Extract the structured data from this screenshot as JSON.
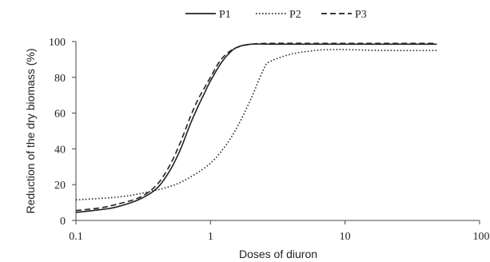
{
  "chart_data": {
    "type": "line",
    "title": "",
    "xlabel": "Doses of diuron",
    "ylabel": "Reduction of the dry biomass (%)",
    "xscale": "log",
    "xlim": [
      0.1,
      100
    ],
    "ylim": [
      0,
      100
    ],
    "x_ticks": [
      0.1,
      1,
      10,
      100
    ],
    "x_tick_labels": [
      "0.1",
      "1",
      "10",
      "100"
    ],
    "y_ticks": [
      0,
      20,
      40,
      60,
      80,
      100
    ],
    "y_tick_labels": [
      "0",
      "20",
      "40",
      "60",
      "80",
      "100"
    ],
    "grid": false,
    "legend_position": "top",
    "series": [
      {
        "name": "P1",
        "style": "solid",
        "color": "#222222",
        "x": [
          0.1,
          0.15,
          0.2,
          0.3,
          0.4,
          0.5,
          0.6,
          0.7,
          0.8,
          0.9,
          1.0,
          1.2,
          1.4,
          1.6,
          2.0,
          3.0,
          5.0,
          10,
          20,
          48
        ],
        "y": [
          4.5,
          6,
          7.5,
          12,
          18,
          28,
          40,
          53,
          63,
          71,
          78,
          88,
          94,
          97,
          98.5,
          98.5,
          98.5,
          98.5,
          98.5,
          98.5
        ]
      },
      {
        "name": "P2",
        "style": "dotted",
        "color": "#222222",
        "x": [
          0.1,
          0.2,
          0.3,
          0.5,
          0.7,
          1.0,
          1.3,
          1.6,
          2.0,
          2.5,
          2.8,
          4.0,
          6.0,
          8.0,
          10,
          20,
          48
        ],
        "y": [
          11.5,
          13,
          15,
          19,
          24,
          32,
          42,
          53,
          68,
          85,
          89,
          93,
          95,
          95.5,
          95.5,
          95,
          95
        ]
      },
      {
        "name": "P3",
        "style": "dashed",
        "color": "#222222",
        "x": [
          0.1,
          0.15,
          0.2,
          0.3,
          0.4,
          0.5,
          0.6,
          0.7,
          0.8,
          0.9,
          1.0,
          1.2,
          1.5,
          2.0,
          3.0,
          5.0,
          10,
          20,
          48
        ],
        "y": [
          5.5,
          7,
          9,
          13,
          20,
          31,
          44,
          57,
          67,
          74,
          80,
          90,
          96,
          98.5,
          99,
          99,
          99,
          99,
          99
        ]
      }
    ]
  }
}
